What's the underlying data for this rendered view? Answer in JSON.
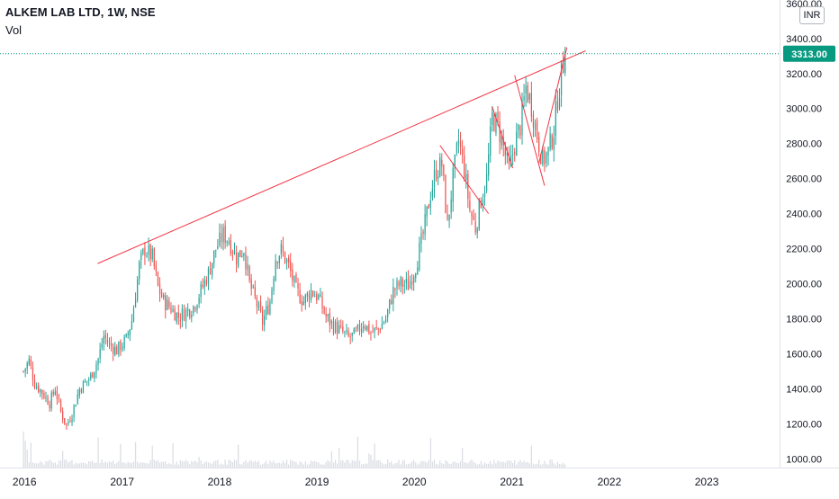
{
  "header": {
    "title": "ALKEM LAB LTD, 1W, NSE",
    "volume_label": "Vol"
  },
  "price_axis": {
    "currency": "INR",
    "last_price_label": "3313.00",
    "ticks": [
      "3600.00",
      "3400.00",
      "3200.00",
      "3000.00",
      "2800.00",
      "2600.00",
      "2400.00",
      "2200.00",
      "2000.00",
      "1800.00",
      "1600.00",
      "1400.00",
      "1200.00",
      "1000.00"
    ]
  },
  "time_axis": {
    "ticks": [
      "2016",
      "2017",
      "2018",
      "2019",
      "2020",
      "2021",
      "2022",
      "2023"
    ]
  },
  "colors": {
    "up": "#26a69a",
    "down": "#ef5350",
    "trendline": "#f23645",
    "last_price": "#089981",
    "volume": "#d1d4dc"
  },
  "chart_data": {
    "type": "candlestick",
    "title": "ALKEM LAB LTD, 1W, NSE",
    "x_axis": {
      "type": "time",
      "range": [
        "2015-10-01",
        "2023-10-01"
      ],
      "tick_labels": [
        "2016",
        "2017",
        "2018",
        "2019",
        "2020",
        "2021",
        "2022",
        "2023"
      ]
    },
    "y_axis": {
      "scale": "linear",
      "range": [
        950,
        3620
      ],
      "unit": "INR",
      "tick_labels": [
        "3600.00",
        "3400.00",
        "3200.00",
        "3000.00",
        "2800.00",
        "2600.00",
        "2400.00",
        "2200.00",
        "2000.00",
        "1800.00",
        "1600.00",
        "1400.00",
        "1200.00",
        "1000.00"
      ]
    },
    "last_price": 3313,
    "price_path": [
      [
        "2015-12-28",
        1500
      ],
      [
        "2016-01-18",
        1560
      ],
      [
        "2016-02-08",
        1430
      ],
      [
        "2016-03-07",
        1380
      ],
      [
        "2016-04-04",
        1320
      ],
      [
        "2016-04-25",
        1400
      ],
      [
        "2016-05-16",
        1270
      ],
      [
        "2016-06-06",
        1190
      ],
      [
        "2016-06-27",
        1260
      ],
      [
        "2016-07-25",
        1400
      ],
      [
        "2016-09-05",
        1470
      ],
      [
        "2016-10-03",
        1570
      ],
      [
        "2016-10-24",
        1700
      ],
      [
        "2016-11-14",
        1650
      ],
      [
        "2016-12-12",
        1620
      ],
      [
        "2017-01-16",
        1680
      ],
      [
        "2017-02-06",
        1790
      ],
      [
        "2017-03-06",
        2100
      ],
      [
        "2017-03-27",
        2200
      ],
      [
        "2017-04-24",
        2150
      ],
      [
        "2017-05-15",
        1980
      ],
      [
        "2017-06-05",
        1900
      ],
      [
        "2017-07-03",
        1860
      ],
      [
        "2017-07-31",
        1810
      ],
      [
        "2017-08-28",
        1840
      ],
      [
        "2017-09-25",
        1870
      ],
      [
        "2017-10-23",
        1960
      ],
      [
        "2017-11-20",
        2060
      ],
      [
        "2017-12-18",
        2200
      ],
      [
        "2018-01-15",
        2280
      ],
      [
        "2018-02-05",
        2250
      ],
      [
        "2018-03-05",
        2150
      ],
      [
        "2018-04-02",
        2200
      ],
      [
        "2018-04-23",
        2000
      ],
      [
        "2018-05-21",
        1880
      ],
      [
        "2018-06-11",
        1780
      ],
      [
        "2018-07-09",
        1900
      ],
      [
        "2018-07-30",
        2150
      ],
      [
        "2018-08-20",
        2190
      ],
      [
        "2018-09-17",
        2100
      ],
      [
        "2018-10-15",
        1960
      ],
      [
        "2018-11-12",
        1900
      ],
      [
        "2018-12-10",
        1960
      ],
      [
        "2019-01-07",
        1920
      ],
      [
        "2019-02-04",
        1810
      ],
      [
        "2019-03-04",
        1760
      ],
      [
        "2019-04-01",
        1730
      ],
      [
        "2019-04-29",
        1690
      ],
      [
        "2019-05-27",
        1710
      ],
      [
        "2019-06-24",
        1780
      ],
      [
        "2019-07-22",
        1720
      ],
      [
        "2019-08-19",
        1740
      ],
      [
        "2019-09-16",
        1800
      ],
      [
        "2019-10-14",
        1960
      ],
      [
        "2019-11-11",
        2000
      ],
      [
        "2019-12-09",
        1990
      ],
      [
        "2020-01-06",
        2100
      ],
      [
        "2020-02-03",
        2280
      ],
      [
        "2020-03-02",
        2520
      ],
      [
        "2020-03-23",
        2650
      ],
      [
        "2020-04-13",
        2680
      ],
      [
        "2020-05-04",
        2330
      ],
      [
        "2020-05-25",
        2600
      ],
      [
        "2020-06-15",
        2820
      ],
      [
        "2020-07-06",
        2650
      ],
      [
        "2020-07-27",
        2420
      ],
      [
        "2020-08-17",
        2320
      ],
      [
        "2020-09-07",
        2480
      ],
      [
        "2020-09-28",
        2600
      ],
      [
        "2020-10-19",
        2950
      ],
      [
        "2020-11-09",
        2900
      ],
      [
        "2020-11-30",
        2780
      ],
      [
        "2020-12-21",
        2640
      ],
      [
        "2021-01-11",
        2800
      ],
      [
        "2021-02-01",
        2900
      ],
      [
        "2021-02-22",
        3120
      ],
      [
        "2021-03-15",
        3020
      ],
      [
        "2021-04-05",
        2850
      ],
      [
        "2021-04-26",
        2700
      ],
      [
        "2021-05-17",
        2750
      ],
      [
        "2021-06-07",
        2880
      ],
      [
        "2021-06-21",
        3060
      ],
      [
        "2021-07-05",
        3200
      ],
      [
        "2021-07-19",
        3313
      ]
    ],
    "trendlines": [
      {
        "from": [
          "2016-10-01",
          2115
        ],
        "to": [
          "2021-10-04",
          3330
        ]
      },
      {
        "from": [
          "2020-04-06",
          2790
        ],
        "to": [
          "2020-10-05",
          2400
        ]
      },
      {
        "from": [
          "2020-10-19",
          3010
        ],
        "to": [
          "2021-01-04",
          2660
        ]
      },
      {
        "from": [
          "2021-01-11",
          3190
        ],
        "to": [
          "2021-05-03",
          2560
        ]
      },
      {
        "from": [
          "2021-04-12",
          2690
        ],
        "to": [
          "2021-07-26",
          3350
        ]
      }
    ]
  }
}
